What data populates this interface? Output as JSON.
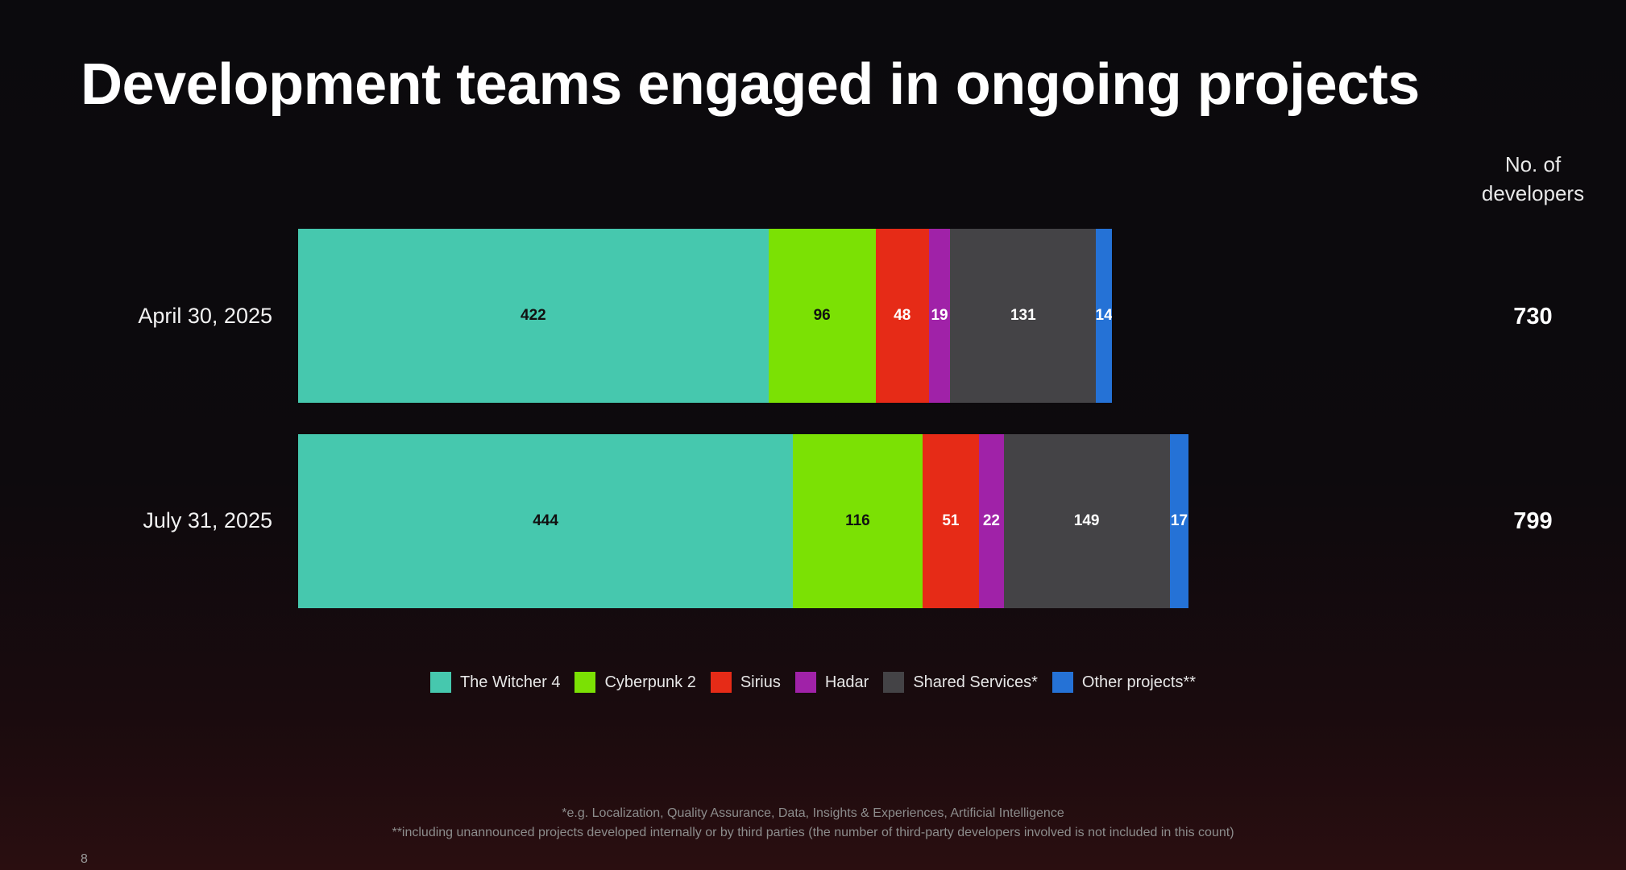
{
  "title": "Development teams engaged in ongoing projects",
  "totals_header_line1": "No. of",
  "totals_header_line2": "developers",
  "chart_data": {
    "type": "bar",
    "orientation": "horizontal",
    "stacked": true,
    "categories": [
      "April 30, 2025",
      "July 31, 2025"
    ],
    "series": [
      {
        "name": "The Witcher 4",
        "values": [
          422,
          444
        ],
        "color": "#46c8ae",
        "label_color": "#111111"
      },
      {
        "name": "Cyberpunk 2",
        "values": [
          96,
          116
        ],
        "color": "#7be104",
        "label_color": "#111111"
      },
      {
        "name": "Sirius",
        "values": [
          48,
          51
        ],
        "color": "#e62b17",
        "label_color": "#ffffff"
      },
      {
        "name": "Hadar",
        "values": [
          19,
          22
        ],
        "color": "#a022a8",
        "label_color": "#ffffff"
      },
      {
        "name": "Shared Services*",
        "values": [
          131,
          149
        ],
        "color": "#444346",
        "label_color": "#ffffff"
      },
      {
        "name": "Other projects**",
        "values": [
          14,
          17
        ],
        "color": "#2572d6",
        "label_color": "#ffffff"
      }
    ],
    "totals": [
      "730",
      "799"
    ],
    "legend_position": "bottom-center",
    "grid": false
  },
  "footnotes": [
    "*e.g. Localization, Quality Assurance, Data, Insights & Experiences, Artificial Intelligence",
    "**including unannounced projects developed internally or by third parties (the number of third-party developers involved is not included in this count)"
  ],
  "page_number": "8"
}
